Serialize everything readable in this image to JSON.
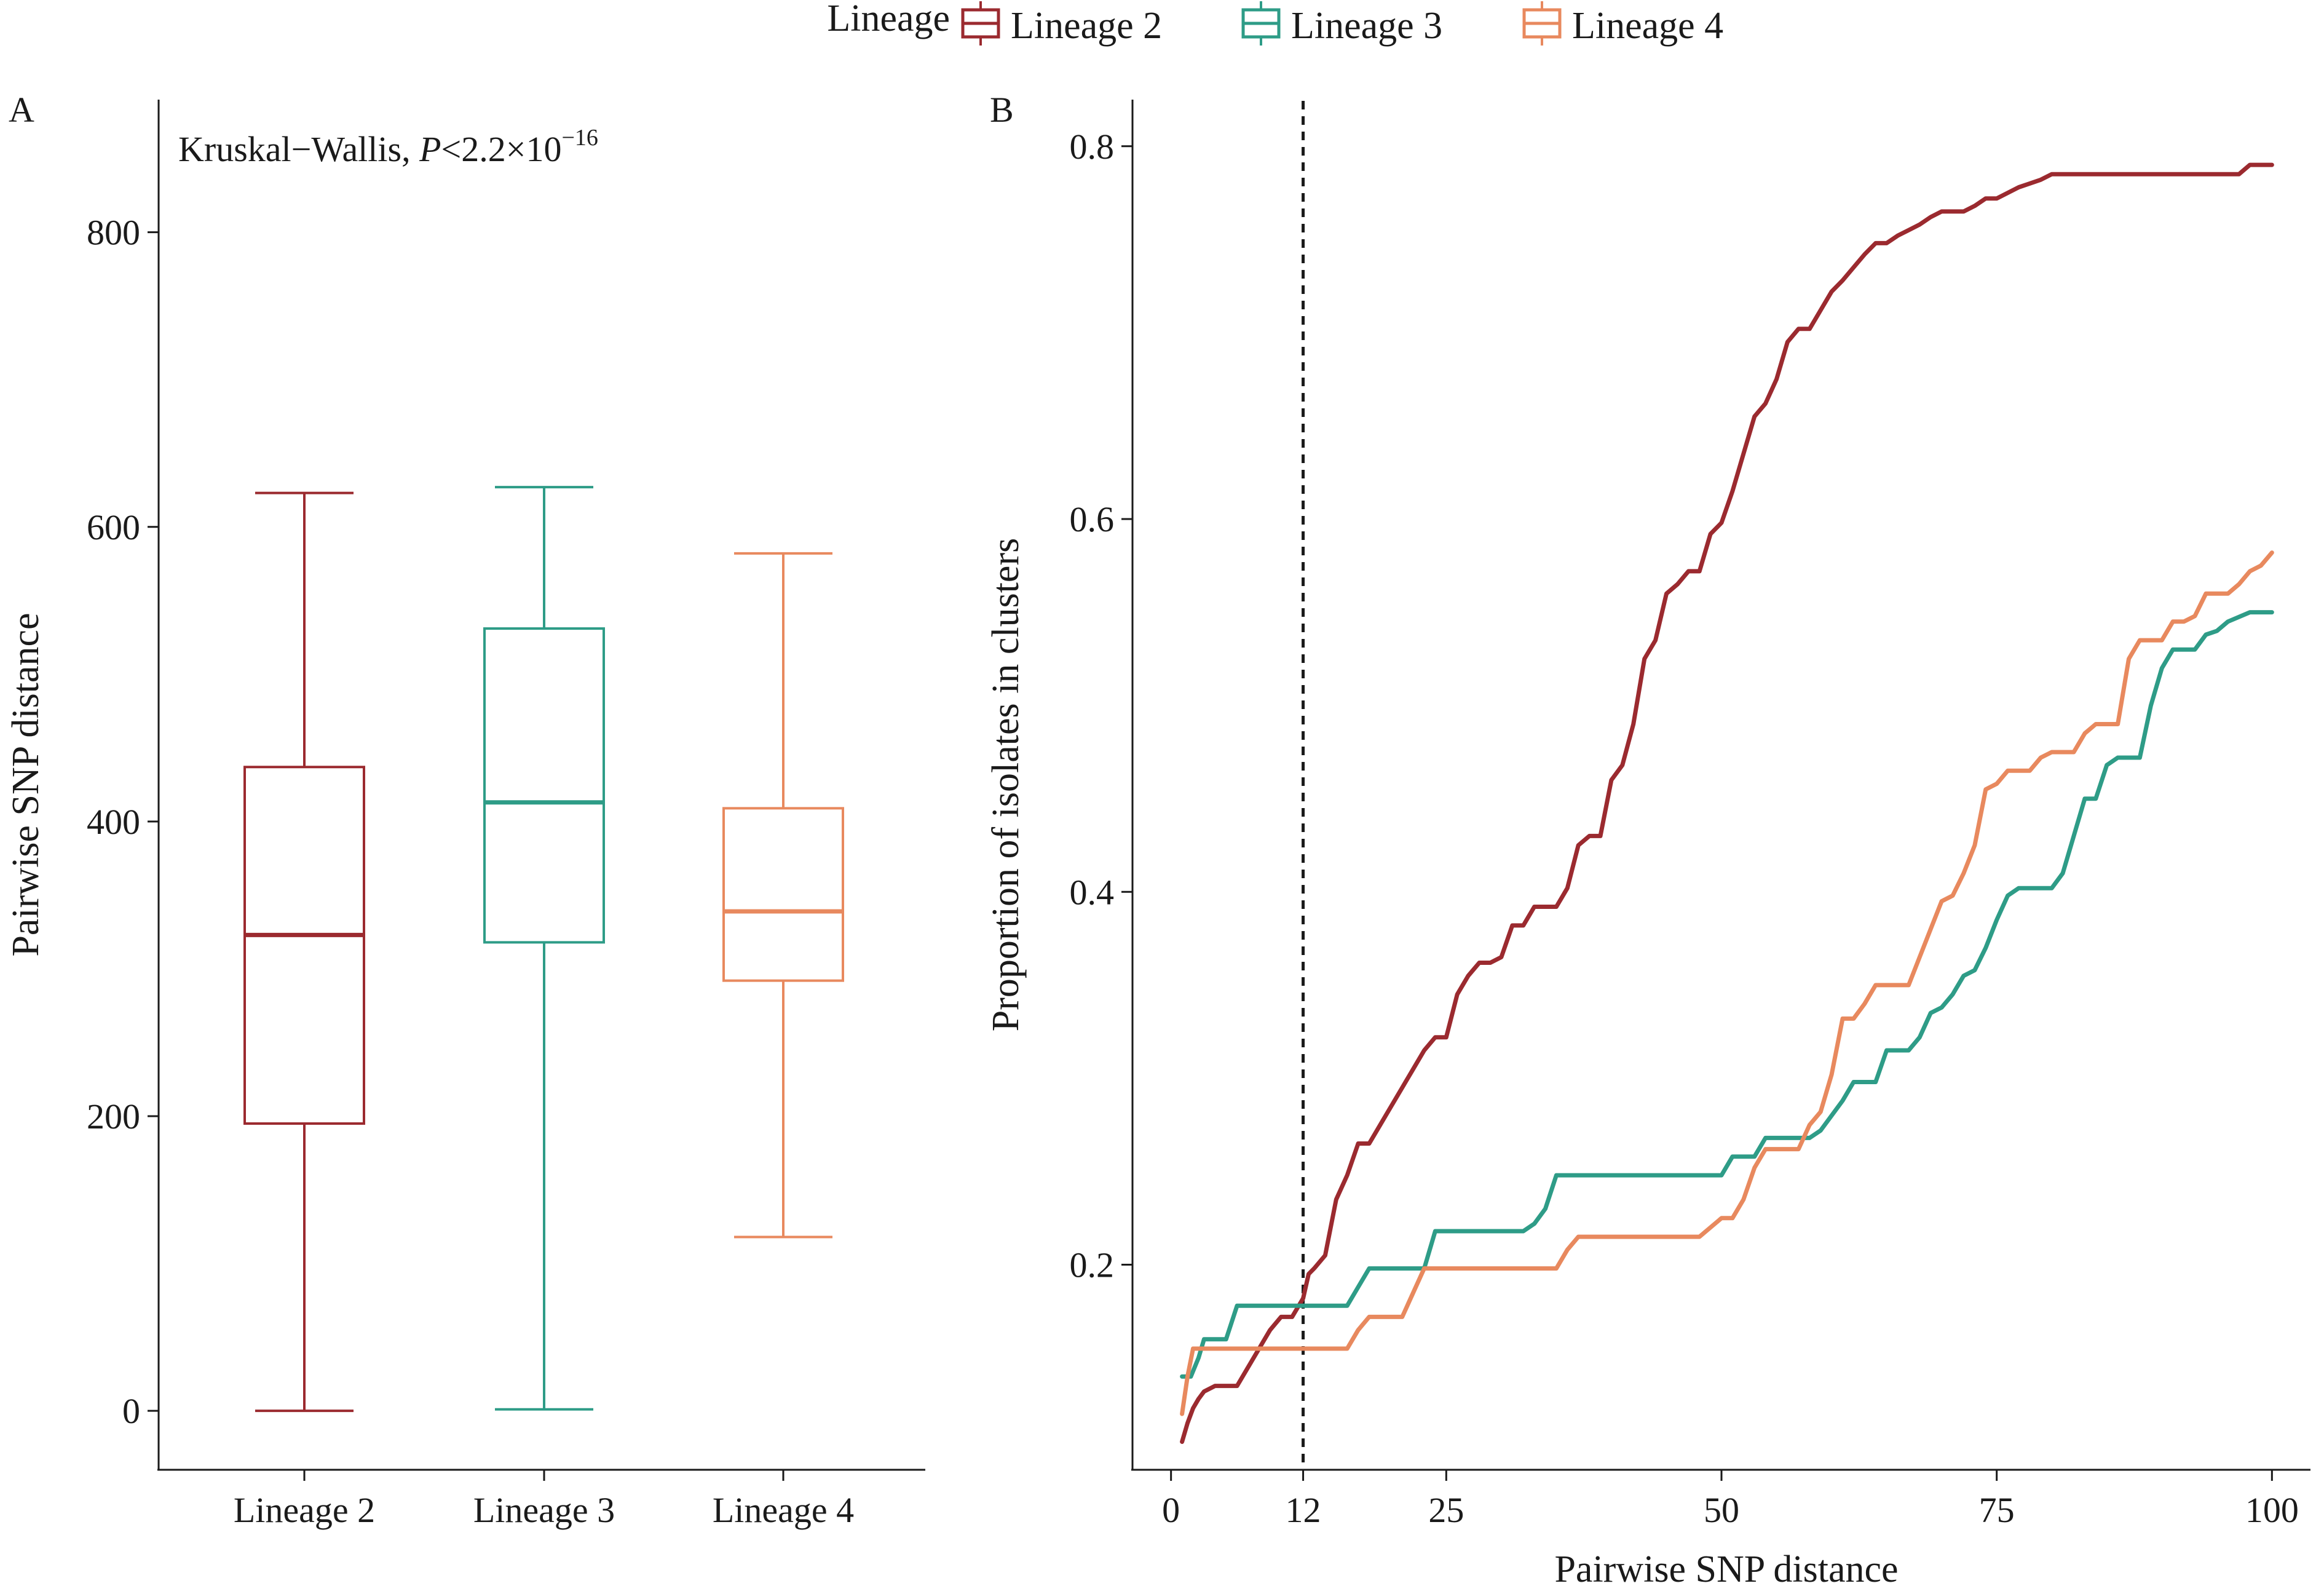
{
  "legend": {
    "title": "Lineage",
    "placement": "top",
    "items": [
      {
        "label": "Lineage 2",
        "color": "#9b2a2f"
      },
      {
        "label": "Lineage 3",
        "color": "#2e9c87"
      },
      {
        "label": "Lineage 4",
        "color": "#e8895e"
      }
    ]
  },
  "chart_data": [
    {
      "panel": "A",
      "type": "box",
      "annotation": {
        "prefix": "Kruskal−Wallis, ",
        "p_symbol": "P",
        "p_value": "<2.2×10",
        "p_exponent": "−16"
      },
      "ylabel": "Pairwise SNP distance",
      "ylim": [
        -40,
        890
      ],
      "yticks": [
        0,
        200,
        400,
        600,
        800
      ],
      "categories": [
        "Lineage 2",
        "Lineage 3",
        "Lineage 4"
      ],
      "boxes": [
        {
          "category": "Lineage 2",
          "min": 0,
          "q1": 195,
          "median": 323,
          "q3": 437,
          "max": 623,
          "color": "#9b2a2f"
        },
        {
          "category": "Lineage 3",
          "min": 1,
          "q1": 318,
          "median": 413,
          "q3": 531,
          "max": 627,
          "color": "#2e9c87"
        },
        {
          "category": "Lineage 4",
          "min": 118,
          "q1": 292,
          "median": 339,
          "q3": 409,
          "max": 582,
          "color": "#e8895e"
        }
      ],
      "grid": false
    },
    {
      "panel": "B",
      "type": "line",
      "xlabel": "Pairwise SNP distance",
      "ylabel": "Proportion of isolates in clusters",
      "xlim": [
        -3.5,
        103.5
      ],
      "ylim": [
        0.09,
        0.825
      ],
      "xticks": [
        0,
        12,
        25,
        50,
        75,
        100
      ],
      "yticks": [
        0.2,
        0.4,
        0.6,
        0.8
      ],
      "reference_line": {
        "x": 12,
        "style": "dashed"
      },
      "grid": false,
      "series": [
        {
          "name": "Lineage 2",
          "color": "#9b2a2f",
          "x": [
            1,
            1.5,
            2,
            2.5,
            3,
            4,
            5,
            6,
            7,
            8,
            9,
            10,
            11,
            12,
            12.5,
            13,
            14,
            15,
            16,
            17,
            18,
            19,
            20,
            21,
            22,
            23,
            24,
            25,
            26,
            27,
            28,
            29,
            30,
            31,
            32,
            33,
            34,
            35,
            36,
            37,
            38,
            39,
            40,
            41,
            42,
            43,
            44,
            45,
            46,
            47,
            48,
            49,
            50,
            51,
            52,
            53,
            54,
            55,
            56,
            57,
            58,
            59,
            60,
            61,
            62,
            63,
            64,
            65,
            66,
            67,
            68,
            69,
            70,
            71,
            72,
            73,
            74,
            75,
            76,
            77,
            78,
            79,
            80,
            81,
            82,
            83,
            84,
            86,
            88,
            90,
            92,
            94,
            96,
            97,
            98,
            99,
            100
          ],
          "values": [
            0.105,
            0.115,
            0.123,
            0.128,
            0.132,
            0.135,
            0.135,
            0.135,
            0.145,
            0.155,
            0.165,
            0.172,
            0.172,
            0.182,
            0.195,
            0.198,
            0.205,
            0.235,
            0.248,
            0.265,
            0.265,
            0.275,
            0.285,
            0.295,
            0.305,
            0.315,
            0.322,
            0.322,
            0.345,
            0.355,
            0.362,
            0.362,
            0.365,
            0.382,
            0.382,
            0.392,
            0.392,
            0.392,
            0.402,
            0.425,
            0.43,
            0.43,
            0.46,
            0.468,
            0.49,
            0.525,
            0.535,
            0.56,
            0.565,
            0.572,
            0.572,
            0.592,
            0.598,
            0.615,
            0.635,
            0.655,
            0.662,
            0.675,
            0.695,
            0.702,
            0.702,
            0.712,
            0.722,
            0.728,
            0.735,
            0.742,
            0.748,
            0.748,
            0.752,
            0.755,
            0.758,
            0.762,
            0.765,
            0.765,
            0.765,
            0.768,
            0.772,
            0.772,
            0.775,
            0.778,
            0.78,
            0.782,
            0.785,
            0.785,
            0.785,
            0.785,
            0.785,
            0.785,
            0.785,
            0.785,
            0.785,
            0.785,
            0.785,
            0.785,
            0.79,
            0.79,
            0.79
          ]
        },
        {
          "name": "Lineage 3",
          "color": "#2e9c87",
          "x": [
            1,
            1.8,
            2.5,
            3,
            4,
            5,
            6,
            7,
            8,
            9,
            10,
            11,
            12,
            13,
            15,
            16,
            17,
            18,
            20,
            22,
            23,
            24,
            26,
            28,
            30,
            32,
            33,
            34,
            35,
            36,
            40,
            45,
            50,
            51,
            52,
            53,
            54,
            55,
            56,
            57,
            58,
            59,
            60,
            61,
            62,
            63,
            64,
            65,
            66,
            67,
            68,
            69,
            70,
            71,
            72,
            73,
            74,
            75,
            76,
            77,
            78,
            79,
            80,
            81,
            82,
            83,
            84,
            85,
            86,
            87,
            88,
            89,
            90,
            91,
            92,
            93,
            94,
            95,
            96,
            98,
            100
          ],
          "values": [
            0.14,
            0.14,
            0.15,
            0.16,
            0.16,
            0.16,
            0.178,
            0.178,
            0.178,
            0.178,
            0.178,
            0.178,
            0.178,
            0.178,
            0.178,
            0.178,
            0.188,
            0.198,
            0.198,
            0.198,
            0.198,
            0.218,
            0.218,
            0.218,
            0.218,
            0.218,
            0.222,
            0.23,
            0.248,
            0.248,
            0.248,
            0.248,
            0.248,
            0.258,
            0.258,
            0.258,
            0.268,
            0.268,
            0.268,
            0.268,
            0.268,
            0.272,
            0.28,
            0.288,
            0.298,
            0.298,
            0.298,
            0.315,
            0.315,
            0.315,
            0.322,
            0.335,
            0.338,
            0.345,
            0.355,
            0.358,
            0.37,
            0.385,
            0.398,
            0.402,
            0.402,
            0.402,
            0.402,
            0.41,
            0.43,
            0.45,
            0.45,
            0.468,
            0.472,
            0.472,
            0.472,
            0.5,
            0.52,
            0.53,
            0.53,
            0.53,
            0.538,
            0.54,
            0.545,
            0.55,
            0.55
          ]
        },
        {
          "name": "Lineage 4",
          "color": "#e8895e",
          "x": [
            1,
            1.5,
            2,
            3,
            5,
            7,
            10,
            12,
            14,
            16,
            17,
            18,
            20,
            21,
            22,
            23,
            25,
            30,
            35,
            36,
            37,
            40,
            45,
            47,
            48,
            50,
            51,
            52,
            53,
            54,
            55,
            56,
            57,
            58,
            59,
            60,
            61,
            62,
            63,
            64,
            65,
            66,
            67,
            68,
            69,
            70,
            71,
            72,
            73,
            74,
            75,
            76,
            77,
            78,
            79,
            80,
            81,
            82,
            83,
            84,
            85,
            86,
            87,
            88,
            89,
            90,
            91,
            92,
            93,
            94,
            95,
            96,
            97,
            98,
            99,
            100
          ],
          "values": [
            0.12,
            0.14,
            0.155,
            0.155,
            0.155,
            0.155,
            0.155,
            0.155,
            0.155,
            0.155,
            0.165,
            0.172,
            0.172,
            0.172,
            0.185,
            0.198,
            0.198,
            0.198,
            0.198,
            0.208,
            0.215,
            0.215,
            0.215,
            0.215,
            0.215,
            0.225,
            0.225,
            0.235,
            0.252,
            0.262,
            0.262,
            0.262,
            0.262,
            0.275,
            0.282,
            0.302,
            0.332,
            0.332,
            0.34,
            0.35,
            0.35,
            0.35,
            0.35,
            0.365,
            0.38,
            0.395,
            0.398,
            0.41,
            0.425,
            0.455,
            0.458,
            0.465,
            0.465,
            0.465,
            0.472,
            0.475,
            0.475,
            0.475,
            0.485,
            0.49,
            0.49,
            0.49,
            0.525,
            0.535,
            0.535,
            0.535,
            0.545,
            0.545,
            0.548,
            0.56,
            0.56,
            0.56,
            0.565,
            0.572,
            0.575,
            0.582
          ]
        }
      ]
    }
  ]
}
